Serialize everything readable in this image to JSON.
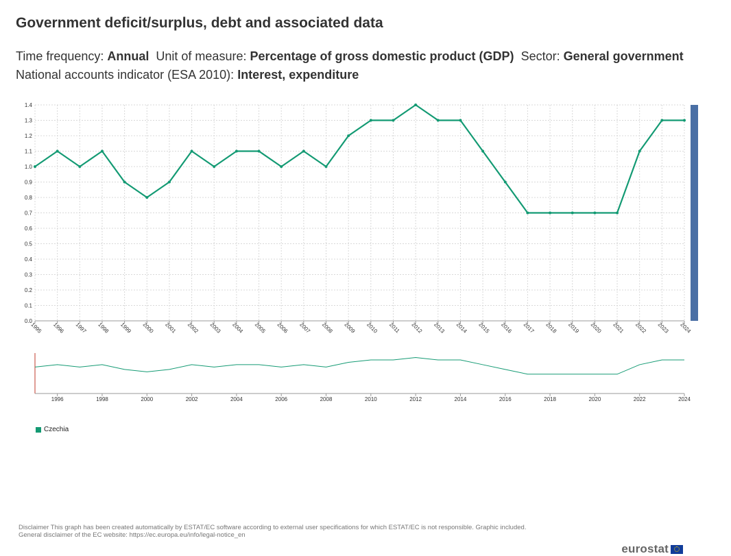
{
  "title": "Government deficit/surplus, debt and associated data",
  "subtitle": {
    "line1": [
      {
        "label": "Time frequency: ",
        "value": "Annual"
      },
      {
        "label": "Unit of measure: ",
        "value": "Percentage of gross domestic product (GDP)"
      },
      {
        "label": "Sector: ",
        "value": "General government"
      }
    ],
    "line2": [
      {
        "label": "National accounts indicator (ESA 2010): ",
        "value": "Interest, expenditure"
      }
    ]
  },
  "chart_data": {
    "type": "line",
    "x": [
      "1995",
      "1996",
      "1997",
      "1998",
      "1999",
      "2000",
      "2001",
      "2002",
      "2003",
      "2004",
      "2005",
      "2006",
      "2007",
      "2008",
      "2009",
      "2010",
      "2011",
      "2012",
      "2013",
      "2014",
      "2015",
      "2016",
      "2017",
      "2018",
      "2019",
      "2020",
      "2021",
      "2022",
      "2023",
      "2024"
    ],
    "series": [
      {
        "name": "Czechia",
        "color": "#139a73",
        "values": [
          1.0,
          1.1,
          1.0,
          1.1,
          0.9,
          0.8,
          0.9,
          1.1,
          1.0,
          1.1,
          1.1,
          1.0,
          1.1,
          1.0,
          1.2,
          1.3,
          1.3,
          1.4,
          1.3,
          1.3,
          1.1,
          0.9,
          0.7,
          0.7,
          0.7,
          0.7,
          0.7,
          1.1,
          1.3,
          1.3
        ]
      }
    ],
    "ylim": [
      0,
      1.4
    ],
    "yticks": [
      "0.0",
      "0.1",
      "0.2",
      "0.3",
      "0.4",
      "0.5",
      "0.6",
      "0.7",
      "0.8",
      "0.9",
      "1.0",
      "1.1",
      "1.2",
      "1.3",
      "1.4"
    ],
    "navigator_ticks": [
      "1996",
      "1998",
      "2000",
      "2002",
      "2004",
      "2006",
      "2008",
      "2010",
      "2012",
      "2014",
      "2016",
      "2018",
      "2020",
      "2022",
      "2024"
    ],
    "grid": true,
    "legend": "bottom-left"
  },
  "disclaimer": {
    "line1": "Disclaimer This graph has been created automatically by ESTAT/EC software according to external user specifications for which ESTAT/EC is not responsible. Graphic included.",
    "line2": "General disclaimer of the EC website: https://ec.europa.eu/info/legal-notice_en"
  },
  "logo_text": "eurostat",
  "colors": {
    "series": "#139a73",
    "scrollbar": "#4a6fa5",
    "grid": "#d8d8d8"
  }
}
